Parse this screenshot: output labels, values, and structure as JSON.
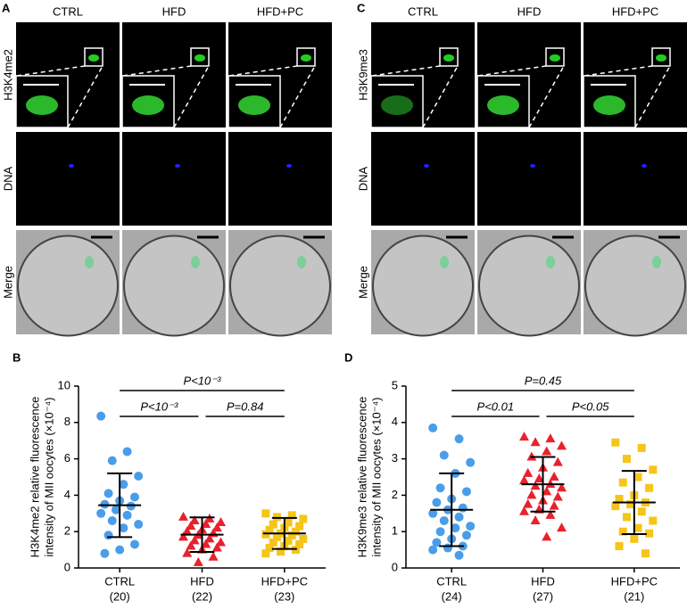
{
  "image_panels": [
    {
      "letter": "A",
      "columns": [
        "CTRL",
        "HFD",
        "HFD+PC"
      ],
      "rows": [
        "H3K4me2",
        "DNA",
        "Merge"
      ]
    },
    {
      "letter": "C",
      "columns": [
        "CTRL",
        "HFD",
        "HFD+PC"
      ],
      "rows": [
        "H3K9me3",
        "DNA",
        "Merge"
      ]
    }
  ],
  "chart_data": [
    {
      "type": "strip",
      "panel_label": "B",
      "ylabel": [
        "H3K4me2 relative fluorescence",
        "intensity of MII oocytes (×10⁻⁴)"
      ],
      "categories": [
        "CTRL",
        "HFD",
        "HFD+PC"
      ],
      "counts": [
        "(20)",
        "(22)",
        "(23)"
      ],
      "ylim": [
        0,
        10
      ],
      "yticks": [
        0,
        2,
        4,
        6,
        8,
        10
      ],
      "series": [
        {
          "color": "#4a9de8",
          "marker": "circle",
          "mean": 3.45,
          "error": 1.75,
          "values": [
            8.35,
            6.4,
            5.9,
            5.05,
            4.6,
            4.1,
            3.9,
            3.7,
            3.5,
            3.4,
            3.2,
            3.0,
            2.9,
            2.6,
            2.4,
            2.2,
            1.8,
            1.3,
            1.0,
            0.8
          ]
        },
        {
          "color": "#e8212c",
          "marker": "triangle",
          "mean": 1.83,
          "error": 0.95,
          "values": [
            2.8,
            2.7,
            2.6,
            2.5,
            2.4,
            2.3,
            2.2,
            2.1,
            2.0,
            1.9,
            1.8,
            1.7,
            1.6,
            1.5,
            1.4,
            1.3,
            1.2,
            1.1,
            1.0,
            0.8,
            0.6,
            0.3
          ]
        },
        {
          "color": "#f5c518",
          "marker": "square",
          "mean": 1.9,
          "error": 0.85,
          "values": [
            3.0,
            2.9,
            2.8,
            2.7,
            2.5,
            2.4,
            2.3,
            2.2,
            2.1,
            2.0,
            1.9,
            1.85,
            1.8,
            1.7,
            1.6,
            1.5,
            1.4,
            1.3,
            1.2,
            1.1,
            1.0,
            0.9,
            0.8
          ]
        }
      ],
      "annotations": [
        "P<10⁻³",
        "P<10⁻³",
        "P=0.84"
      ]
    },
    {
      "type": "strip",
      "panel_label": "D",
      "ylabel": [
        "H3K9me3 relative fluorescence",
        "intensity of MII oocytes (×10⁻⁴)"
      ],
      "categories": [
        "CTRL",
        "HFD",
        "HFD+PC"
      ],
      "counts": [
        "(24)",
        "(27)",
        "(21)"
      ],
      "ylim": [
        0,
        5
      ],
      "yticks": [
        0,
        1,
        2,
        3,
        4,
        5
      ],
      "series": [
        {
          "color": "#4a9de8",
          "marker": "circle",
          "mean": 1.6,
          "error": 1.0,
          "values": [
            3.85,
            3.55,
            3.1,
            2.9,
            2.6,
            2.2,
            2.1,
            1.9,
            1.8,
            1.65,
            1.6,
            1.5,
            1.4,
            1.3,
            1.15,
            1.1,
            1.0,
            0.9,
            0.8,
            0.7,
            0.6,
            0.55,
            0.5,
            0.35
          ]
        },
        {
          "color": "#e8212c",
          "marker": "triangle",
          "mean": 2.3,
          "error": 0.75,
          "values": [
            3.6,
            3.55,
            3.45,
            3.35,
            3.2,
            3.05,
            2.9,
            2.75,
            2.6,
            2.5,
            2.45,
            2.4,
            2.3,
            2.25,
            2.2,
            2.1,
            2.0,
            1.95,
            1.85,
            1.75,
            1.7,
            1.6,
            1.55,
            1.45,
            1.3,
            1.1,
            0.85
          ]
        },
        {
          "color": "#f5c518",
          "marker": "square",
          "mean": 1.8,
          "error": 0.87,
          "values": [
            3.45,
            3.3,
            3.0,
            2.7,
            2.5,
            2.35,
            2.2,
            2.0,
            1.9,
            1.8,
            1.75,
            1.7,
            1.55,
            1.4,
            1.3,
            1.1,
            1.0,
            0.95,
            0.8,
            0.6,
            0.4
          ]
        }
      ],
      "annotations": [
        "P=0.45",
        "P<0.01",
        "P<0.05"
      ]
    }
  ]
}
